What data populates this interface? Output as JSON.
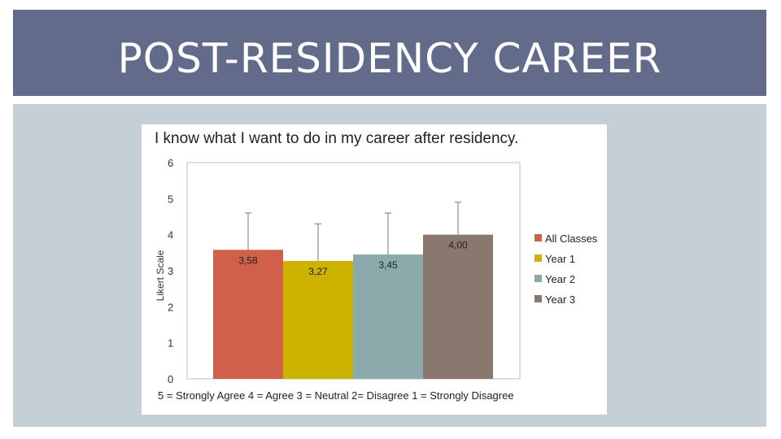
{
  "slide": {
    "title": "POST-RESIDENCY CAREER"
  },
  "chart_data": {
    "type": "bar",
    "title": "I know what I want to do in my career after residency.",
    "ylabel": "Likert Scale",
    "xlabel": "",
    "ylim": [
      0,
      6
    ],
    "yticks": [
      "0",
      "1",
      "2",
      "3",
      "4",
      "5",
      "6"
    ],
    "grid": false,
    "legend_position": "right",
    "series": [
      {
        "name": "All Classes",
        "value": 3.58,
        "label": "3,58",
        "error_high": 4.6,
        "color": "#d0604a"
      },
      {
        "name": "Year 1",
        "value": 3.27,
        "label": "3,27",
        "error_high": 4.3,
        "color": "#cdb200"
      },
      {
        "name": "Year 2",
        "value": 3.45,
        "label": "3,45",
        "error_high": 4.6,
        "color": "#8aaaac"
      },
      {
        "name": "Year 3",
        "value": 4.0,
        "label": "4,00",
        "error_high": 4.9,
        "color": "#8a786e"
      }
    ],
    "caption": "5 = Strongly Agree   4 = Agree   3 = Neutral   2= Disagree   1 = Strongly Disagree"
  }
}
